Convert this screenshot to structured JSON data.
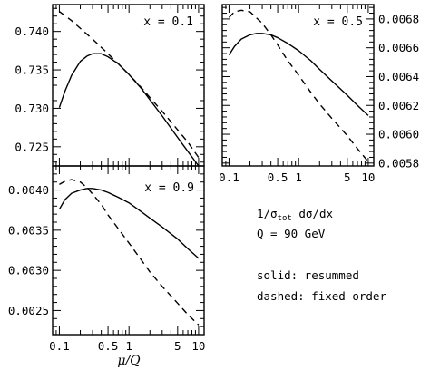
{
  "chart_data": [
    {
      "type": "line",
      "panel": "top-left",
      "label": "x = 0.1",
      "xscale": "log",
      "xlim": [
        0.08,
        12
      ],
      "ylim": [
        0.7225,
        0.7435
      ],
      "xticks": [
        0.1,
        0.5,
        1,
        5,
        10
      ],
      "xtick_labels": [],
      "yticks": [
        0.725,
        0.73,
        0.735,
        0.74
      ],
      "ytick_labels": [
        "0.725",
        "0.730",
        "0.735",
        "0.740"
      ],
      "ytick_side": "left",
      "series": [
        {
          "name": "solid",
          "style": "solid",
          "x": [
            0.1,
            0.12,
            0.15,
            0.2,
            0.25,
            0.3,
            0.4,
            0.5,
            0.7,
            1,
            1.5,
            2,
            3,
            5,
            7,
            10
          ],
          "y": [
            0.7301,
            0.7322,
            0.7343,
            0.7361,
            0.7368,
            0.7371,
            0.7371,
            0.7367,
            0.7358,
            0.7344,
            0.7326,
            0.7311,
            0.729,
            0.7262,
            0.7244,
            0.7225
          ]
        },
        {
          "name": "dashed",
          "style": "dashed",
          "x": [
            0.1,
            0.15,
            0.2,
            0.3,
            0.5,
            0.7,
            1,
            1.5,
            2,
            3,
            5,
            7,
            10
          ],
          "y": [
            0.7426,
            0.7414,
            0.7404,
            0.739,
            0.7371,
            0.7358,
            0.7344,
            0.7327,
            0.7314,
            0.7296,
            0.7272,
            0.7256,
            0.7236
          ]
        }
      ]
    },
    {
      "type": "line",
      "panel": "top-right",
      "label": "x = 0.5",
      "xscale": "log",
      "xlim": [
        0.08,
        12
      ],
      "ylim": [
        0.00578,
        0.0069
      ],
      "xticks": [
        0.1,
        0.5,
        1,
        5,
        10
      ],
      "xtick_labels": [
        "0.1",
        "0.5",
        "1",
        "5",
        "10"
      ],
      "yticks": [
        0.0058,
        0.006,
        0.0062,
        0.0064,
        0.0066,
        0.0068
      ],
      "ytick_labels": [
        "0.0058",
        "0.0060",
        "0.0062",
        "0.0064",
        "0.0066",
        "0.0068"
      ],
      "ytick_side": "right",
      "series": [
        {
          "name": "solid",
          "style": "solid",
          "x": [
            0.1,
            0.12,
            0.15,
            0.2,
            0.25,
            0.3,
            0.4,
            0.5,
            0.7,
            1,
            1.5,
            2,
            3,
            5,
            7,
            10
          ],
          "y": [
            0.00655,
            0.00661,
            0.00666,
            0.00669,
            0.0067,
            0.0067,
            0.00669,
            0.00667,
            0.00663,
            0.00658,
            0.00651,
            0.00645,
            0.00637,
            0.00627,
            0.0062,
            0.00613
          ]
        },
        {
          "name": "dashed",
          "style": "dashed",
          "x": [
            0.1,
            0.12,
            0.15,
            0.2,
            0.3,
            0.4,
            0.5,
            0.7,
            1,
            1.5,
            2,
            3,
            5,
            7,
            10
          ],
          "y": [
            0.00681,
            0.00685,
            0.00686,
            0.00685,
            0.00677,
            0.00669,
            0.00662,
            0.00651,
            0.00641,
            0.00629,
            0.00621,
            0.00611,
            0.00599,
            0.0059,
            0.00581
          ]
        }
      ]
    },
    {
      "type": "line",
      "panel": "bottom-left",
      "label": "x = 0.9",
      "xscale": "log",
      "xlim": [
        0.08,
        12
      ],
      "ylim": [
        0.0022,
        0.0043
      ],
      "xticks": [
        0.1,
        0.5,
        1,
        5,
        10
      ],
      "xtick_labels": [
        "0.1",
        "0.5",
        "1",
        "5",
        "10"
      ],
      "yticks": [
        0.0025,
        0.003,
        0.0035,
        0.004
      ],
      "ytick_labels": [
        "0.0025",
        "0.0030",
        "0.0035",
        "0.0040"
      ],
      "ytick_side": "left",
      "series": [
        {
          "name": "solid",
          "style": "solid",
          "x": [
            0.1,
            0.12,
            0.15,
            0.2,
            0.25,
            0.3,
            0.4,
            0.5,
            0.7,
            1,
            1.5,
            2,
            3,
            5,
            7,
            10
          ],
          "y": [
            0.00376,
            0.00388,
            0.00396,
            0.004,
            0.00402,
            0.00402,
            0.004,
            0.00397,
            0.00391,
            0.00384,
            0.00373,
            0.00365,
            0.00354,
            0.00339,
            0.00327,
            0.00315
          ]
        },
        {
          "name": "dashed",
          "style": "dashed",
          "x": [
            0.1,
            0.12,
            0.15,
            0.2,
            0.25,
            0.3,
            0.4,
            0.5,
            0.7,
            1,
            1.5,
            2,
            3,
            5,
            7,
            10
          ],
          "y": [
            0.00407,
            0.00411,
            0.00413,
            0.0041,
            0.00403,
            0.00395,
            0.00382,
            0.00369,
            0.00352,
            0.00334,
            0.00313,
            0.00298,
            0.0028,
            0.00259,
            0.00245,
            0.00232
          ]
        }
      ]
    }
  ],
  "xlabel": "μ/Q",
  "annotations": {
    "line1": "1/σ",
    "line1_sub": "tot",
    "line1_rest": " dσ/dx",
    "line2": "Q = 90 GeV",
    "line3": "solid: resummed",
    "line4": "dashed: fixed order"
  }
}
